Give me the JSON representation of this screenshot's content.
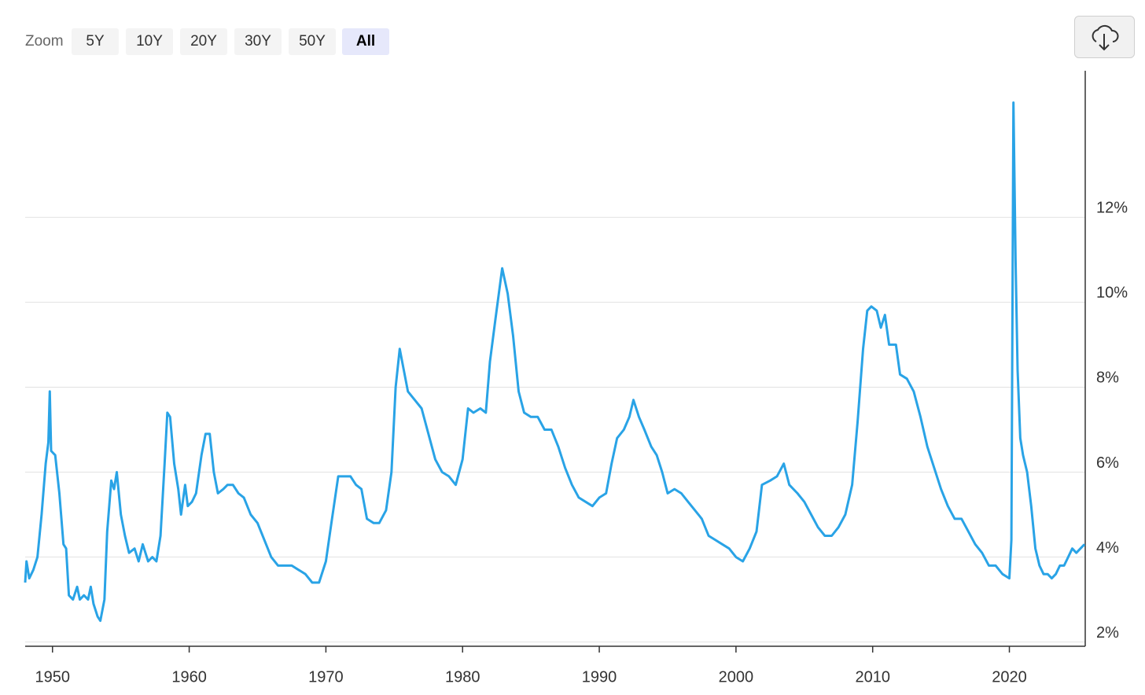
{
  "toolbar": {
    "zoom_label": "Zoom",
    "zoom_buttons": [
      "5Y",
      "10Y",
      "20Y",
      "30Y",
      "50Y",
      "All"
    ],
    "active_index": 5
  },
  "chart_data": {
    "type": "line",
    "color": "#29a3e6",
    "grid": true,
    "xlim": [
      1948,
      2025.55
    ],
    "xticks": [
      1950,
      1960,
      1970,
      1980,
      1990,
      2000,
      2010,
      2020
    ],
    "ylim": [
      1.9,
      15.45
    ],
    "yticks": [
      {
        "value": 2,
        "label": "2%"
      },
      {
        "value": 4,
        "label": "4%"
      },
      {
        "value": 6,
        "label": "6%"
      },
      {
        "value": 8,
        "label": "8%"
      },
      {
        "value": 10,
        "label": "10%"
      },
      {
        "value": 12,
        "label": "12%"
      }
    ],
    "x": [
      1948.0,
      1948.1,
      1948.3,
      1948.6,
      1948.9,
      1949.2,
      1949.5,
      1949.7,
      1949.8,
      1949.9,
      1950.2,
      1950.5,
      1950.8,
      1951.0,
      1951.2,
      1951.5,
      1951.8,
      1952.0,
      1952.3,
      1952.6,
      1952.8,
      1953.0,
      1953.3,
      1953.5,
      1953.8,
      1954.0,
      1954.3,
      1954.5,
      1954.7,
      1955.0,
      1955.3,
      1955.6,
      1956.0,
      1956.3,
      1956.6,
      1957.0,
      1957.3,
      1957.6,
      1957.9,
      1958.2,
      1958.4,
      1958.6,
      1958.9,
      1959.2,
      1959.4,
      1959.7,
      1959.9,
      1960.2,
      1960.5,
      1960.9,
      1961.2,
      1961.5,
      1961.8,
      1962.1,
      1962.5,
      1962.8,
      1963.2,
      1963.6,
      1964.0,
      1964.5,
      1965.0,
      1965.5,
      1966.0,
      1966.5,
      1967.0,
      1967.5,
      1968.0,
      1968.5,
      1969.0,
      1969.5,
      1970.0,
      1970.4,
      1970.9,
      1971.3,
      1971.8,
      1972.2,
      1972.6,
      1973.0,
      1973.5,
      1973.9,
      1974.4,
      1974.8,
      1975.1,
      1975.4,
      1975.7,
      1976.0,
      1976.5,
      1977.0,
      1977.5,
      1978.0,
      1978.5,
      1979.0,
      1979.5,
      1980.0,
      1980.4,
      1980.8,
      1981.3,
      1981.7,
      1982.0,
      1982.4,
      1982.9,
      1983.3,
      1983.7,
      1984.1,
      1984.5,
      1985.0,
      1985.5,
      1986.0,
      1986.5,
      1987.0,
      1987.5,
      1988.0,
      1988.5,
      1989.0,
      1989.5,
      1990.0,
      1990.5,
      1990.9,
      1991.3,
      1991.8,
      1992.2,
      1992.5,
      1992.9,
      1993.3,
      1993.8,
      1994.2,
      1994.6,
      1995.0,
      1995.5,
      1996.0,
      1996.5,
      1997.0,
      1997.5,
      1998.0,
      1998.5,
      1999.0,
      1999.5,
      2000.0,
      2000.5,
      2001.0,
      2001.5,
      2001.9,
      2002.5,
      2003.0,
      2003.5,
      2003.9,
      2004.5,
      2005.0,
      2005.5,
      2006.0,
      2006.5,
      2007.0,
      2007.5,
      2008.0,
      2008.5,
      2008.9,
      2009.3,
      2009.6,
      2009.9,
      2010.3,
      2010.6,
      2010.9,
      2011.2,
      2011.7,
      2012.0,
      2012.5,
      2013.0,
      2013.5,
      2014.0,
      2014.5,
      2015.0,
      2015.5,
      2016.0,
      2016.5,
      2017.0,
      2017.5,
      2018.0,
      2018.5,
      2019.0,
      2019.5,
      2020.0,
      2020.15,
      2020.3,
      2020.45,
      2020.6,
      2020.8,
      2021.0,
      2021.3,
      2021.6,
      2021.9,
      2022.2,
      2022.5,
      2022.8,
      2023.1,
      2023.4,
      2023.7,
      2024.0,
      2024.3,
      2024.6,
      2024.9,
      2025.2,
      2025.5
    ],
    "values": [
      3.4,
      3.9,
      3.5,
      3.7,
      4.0,
      5.0,
      6.2,
      6.7,
      7.9,
      6.5,
      6.4,
      5.5,
      4.3,
      4.2,
      3.1,
      3.0,
      3.3,
      3.0,
      3.1,
      3.0,
      3.3,
      2.9,
      2.6,
      2.5,
      3.0,
      4.6,
      5.8,
      5.6,
      6.0,
      5.0,
      4.5,
      4.1,
      4.2,
      3.9,
      4.3,
      3.9,
      4.0,
      3.9,
      4.5,
      6.2,
      7.4,
      7.3,
      6.2,
      5.6,
      5.0,
      5.7,
      5.2,
      5.3,
      5.5,
      6.4,
      6.9,
      6.9,
      6.0,
      5.5,
      5.6,
      5.7,
      5.7,
      5.5,
      5.4,
      5.0,
      4.8,
      4.4,
      4.0,
      3.8,
      3.8,
      3.8,
      3.7,
      3.6,
      3.4,
      3.4,
      3.9,
      4.8,
      5.9,
      5.9,
      5.9,
      5.7,
      5.6,
      4.9,
      4.8,
      4.8,
      5.1,
      6.0,
      8.0,
      8.9,
      8.4,
      7.9,
      7.7,
      7.5,
      6.9,
      6.3,
      6.0,
      5.9,
      5.7,
      6.3,
      7.5,
      7.4,
      7.5,
      7.4,
      8.6,
      9.6,
      10.8,
      10.2,
      9.2,
      7.9,
      7.4,
      7.3,
      7.3,
      7.0,
      7.0,
      6.6,
      6.1,
      5.7,
      5.4,
      5.3,
      5.2,
      5.4,
      5.5,
      6.2,
      6.8,
      7.0,
      7.3,
      7.7,
      7.3,
      7.0,
      6.6,
      6.4,
      6.0,
      5.5,
      5.6,
      5.5,
      5.3,
      5.1,
      4.9,
      4.5,
      4.4,
      4.3,
      4.2,
      4.0,
      3.9,
      4.2,
      4.6,
      5.7,
      5.8,
      5.9,
      6.2,
      5.7,
      5.5,
      5.3,
      5.0,
      4.7,
      4.5,
      4.5,
      4.7,
      5.0,
      5.7,
      7.2,
      8.9,
      9.8,
      9.9,
      9.8,
      9.4,
      9.7,
      9.0,
      9.0,
      8.3,
      8.2,
      7.9,
      7.3,
      6.6,
      6.1,
      5.6,
      5.2,
      4.9,
      4.9,
      4.6,
      4.3,
      4.1,
      3.8,
      3.8,
      3.6,
      3.5,
      4.4,
      14.7,
      11.0,
      8.4,
      6.8,
      6.4,
      6.0,
      5.2,
      4.2,
      3.8,
      3.6,
      3.6,
      3.5,
      3.6,
      3.8,
      3.8,
      4.0,
      4.2,
      4.1,
      4.2,
      4.3
    ]
  }
}
